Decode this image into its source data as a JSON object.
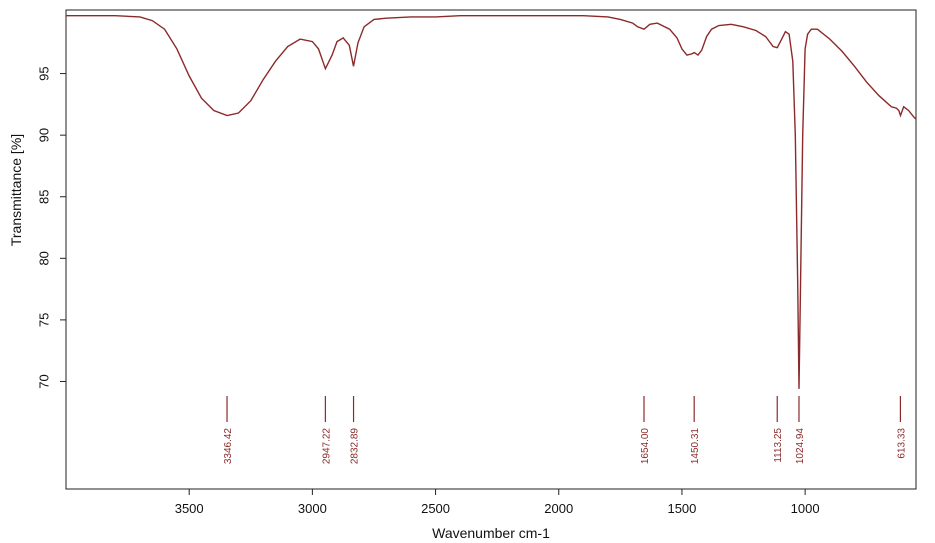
{
  "chart_data": {
    "type": "line",
    "title": "",
    "xlabel": "Wavenumber cm-1",
    "ylabel": "Transmittance [%]",
    "xlim": [
      4000,
      550
    ],
    "ylim": [
      62,
      100
    ],
    "x_reversed": true,
    "grid": false,
    "line_color": "#8b2a2a",
    "x_ticks": [
      3500,
      3000,
      2500,
      2000,
      1500,
      1000
    ],
    "y_ticks": [
      70,
      75,
      80,
      85,
      90,
      95
    ],
    "y_tick_labels": [
      "70",
      "75",
      "80",
      "85",
      "90",
      "95"
    ],
    "series": [
      {
        "x": [
          4000,
          3900,
          3800,
          3700,
          3650,
          3600,
          3550,
          3500,
          3450,
          3400,
          3346,
          3300,
          3250,
          3200,
          3150,
          3100,
          3050,
          3000,
          2975,
          2947,
          2920,
          2900,
          2875,
          2850,
          2833,
          2815,
          2790,
          2750,
          2700,
          2600,
          2500,
          2400,
          2300,
          2200,
          2100,
          2000,
          1900,
          1800,
          1750,
          1700,
          1680,
          1654,
          1630,
          1600,
          1550,
          1520,
          1500,
          1480,
          1460,
          1450,
          1435,
          1420,
          1400,
          1380,
          1350,
          1300,
          1250,
          1200,
          1160,
          1130,
          1113,
          1095,
          1080,
          1065,
          1050,
          1040,
          1030,
          1025,
          1020,
          1010,
          1000,
          990,
          975,
          950,
          900,
          850,
          800,
          750,
          700,
          650,
          630,
          620,
          613,
          600,
          580,
          560,
          550
        ],
        "y": [
          99.7,
          99.7,
          99.7,
          99.6,
          99.3,
          98.6,
          97.0,
          94.8,
          93.0,
          92.0,
          91.6,
          91.8,
          92.8,
          94.5,
          96.0,
          97.2,
          97.8,
          97.6,
          97.0,
          95.4,
          96.5,
          97.6,
          97.9,
          97.3,
          95.6,
          97.5,
          98.8,
          99.4,
          99.5,
          99.6,
          99.6,
          99.7,
          99.7,
          99.7,
          99.7,
          99.7,
          99.7,
          99.6,
          99.4,
          99.1,
          98.8,
          98.6,
          99.0,
          99.1,
          98.6,
          97.9,
          97.0,
          96.5,
          96.6,
          96.7,
          96.5,
          96.9,
          98.0,
          98.6,
          98.9,
          99.0,
          98.8,
          98.5,
          98.0,
          97.2,
          97.1,
          97.8,
          98.4,
          98.2,
          96.0,
          90.0,
          78.0,
          69.4,
          76.0,
          90.0,
          97.0,
          98.2,
          98.6,
          98.6,
          97.8,
          96.8,
          95.6,
          94.3,
          93.2,
          92.3,
          92.2,
          92.0,
          91.6,
          92.3,
          92.0,
          91.5,
          91.3
        ]
      }
    ],
    "peaks": [
      "3346.42",
      "2947.22",
      "2832.89",
      "1654.00",
      "1450.31",
      "1113.25",
      "1024.94",
      "613.33"
    ],
    "peak_positions": [
      3346.42,
      2947.22,
      2832.89,
      1654.0,
      1450.31,
      1113.25,
      1024.94,
      613.33
    ]
  }
}
